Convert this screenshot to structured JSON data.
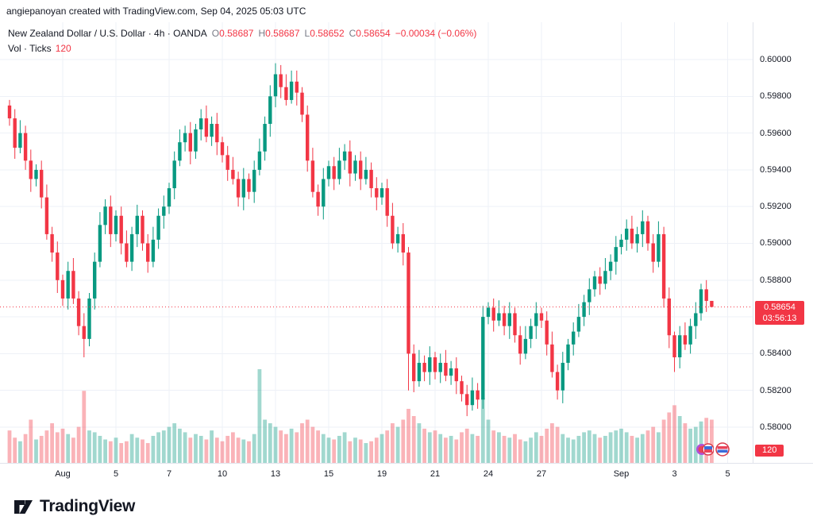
{
  "topbar": {
    "attribution": "angiepanoyan created with TradingView.com, Sep 04, 2025 05:03 UTC"
  },
  "legend": {
    "symbol_line": "New Zealand Dollar / U.S. Dollar · 4h · OANDA",
    "ohlc": [
      {
        "label": "O",
        "value": "0.58687"
      },
      {
        "label": "H",
        "value": "0.58687"
      },
      {
        "label": "L",
        "value": "0.58652"
      },
      {
        "label": "C",
        "value": "0.58654"
      }
    ],
    "change": "−0.00034 (−0.06%)",
    "vol_label": "Vol · Ticks",
    "vol_value": "120"
  },
  "price_axis": {
    "current_price": "0.58654",
    "countdown": "03:56:13",
    "volume_badge": "120"
  },
  "footer": {
    "brand": "TradingView"
  },
  "chart_data": {
    "type": "candlestick",
    "title": "New Zealand Dollar / U.S. Dollar",
    "interval": "4h",
    "exchange": "OANDA",
    "current_price": 0.58654,
    "current_volume": 120,
    "ohlc_current": {
      "o": 0.58687,
      "h": 0.58687,
      "l": 0.58652,
      "c": 0.58654
    },
    "change": -0.00034,
    "change_pct": -0.06,
    "ylim": [
      0.578,
      0.602
    ],
    "open_first": 0.5975,
    "closes": [
      0.5968,
      0.5952,
      0.596,
      0.5945,
      0.5935,
      0.594,
      0.5925,
      0.5905,
      0.5895,
      0.588,
      0.587,
      0.5885,
      0.587,
      0.5855,
      0.5848,
      0.587,
      0.589,
      0.591,
      0.592,
      0.5905,
      0.5915,
      0.59,
      0.589,
      0.5905,
      0.5915,
      0.59,
      0.589,
      0.5902,
      0.5915,
      0.592,
      0.593,
      0.5945,
      0.5955,
      0.596,
      0.595,
      0.5962,
      0.5968,
      0.5958,
      0.5965,
      0.5955,
      0.5948,
      0.594,
      0.5935,
      0.5925,
      0.5935,
      0.5928,
      0.594,
      0.595,
      0.5965,
      0.598,
      0.5992,
      0.5985,
      0.5978,
      0.5988,
      0.5982,
      0.597,
      0.5945,
      0.5928,
      0.592,
      0.5935,
      0.5942,
      0.5935,
      0.5945,
      0.595,
      0.5938,
      0.5945,
      0.5935,
      0.594,
      0.593,
      0.5925,
      0.593,
      0.5915,
      0.59,
      0.5905,
      0.5895,
      0.584,
      0.5825,
      0.5835,
      0.583,
      0.5838,
      0.583,
      0.5835,
      0.5828,
      0.5832,
      0.5825,
      0.5818,
      0.5812,
      0.582,
      0.5815,
      0.586,
      0.5865,
      0.5858,
      0.5862,
      0.5855,
      0.5862,
      0.585,
      0.584,
      0.5848,
      0.5855,
      0.5862,
      0.5858,
      0.5845,
      0.583,
      0.582,
      0.5835,
      0.5845,
      0.5852,
      0.586,
      0.5868,
      0.5875,
      0.5882,
      0.5878,
      0.5885,
      0.589,
      0.5898,
      0.5902,
      0.5908,
      0.59,
      0.5905,
      0.5912,
      0.59,
      0.589,
      0.5905,
      0.587,
      0.585,
      0.5838,
      0.585,
      0.5845,
      0.5855,
      0.5862,
      0.5875,
      0.58687,
      0.58654
    ],
    "volumes": [
      90,
      70,
      60,
      80,
      120,
      65,
      75,
      90,
      110,
      85,
      95,
      80,
      70,
      100,
      200,
      90,
      85,
      75,
      65,
      60,
      70,
      55,
      60,
      80,
      70,
      65,
      55,
      75,
      85,
      90,
      100,
      110,
      95,
      85,
      70,
      80,
      75,
      65,
      90,
      70,
      60,
      75,
      85,
      70,
      65,
      60,
      80,
      260,
      120,
      110,
      100,
      90,
      80,
      95,
      85,
      110,
      120,
      100,
      90,
      80,
      70,
      65,
      75,
      85,
      60,
      70,
      65,
      55,
      60,
      70,
      80,
      90,
      110,
      100,
      120,
      150,
      130,
      110,
      95,
      85,
      90,
      80,
      70,
      75,
      65,
      85,
      95,
      80,
      75,
      180,
      120,
      90,
      85,
      75,
      70,
      80,
      65,
      60,
      70,
      85,
      75,
      95,
      110,
      100,
      80,
      70,
      65,
      75,
      85,
      90,
      80,
      70,
      75,
      85,
      90,
      95,
      85,
      75,
      70,
      80,
      90,
      100,
      85,
      120,
      140,
      160,
      130,
      110,
      95,
      100,
      115,
      125,
      120
    ],
    "wick_overrides": {
      "14": [
        0.5862,
        0.5838
      ],
      "50": [
        0.5998,
        0.5974
      ],
      "53": [
        0.5994,
        0.5976
      ],
      "75": [
        0.5898,
        0.582
      ],
      "89": [
        0.5866,
        0.581
      ],
      "125": [
        0.5852,
        0.583
      ],
      "132": [
        0.58687,
        0.58652
      ]
    },
    "x_ticks": [
      {
        "label": "Aug",
        "index": 10
      },
      {
        "label": "5",
        "index": 20
      },
      {
        "label": "7",
        "index": 30
      },
      {
        "label": "10",
        "index": 40
      },
      {
        "label": "13",
        "index": 50
      },
      {
        "label": "15",
        "index": 60
      },
      {
        "label": "19",
        "index": 70
      },
      {
        "label": "21",
        "index": 80
      },
      {
        "label": "24",
        "index": 90
      },
      {
        "label": "27",
        "index": 100
      },
      {
        "label": "Sep",
        "index": 115
      },
      {
        "label": "3",
        "index": 125
      },
      {
        "label": "5",
        "index": 135
      }
    ],
    "y_ticks": [
      "0.60000",
      "0.59800",
      "0.59600",
      "0.59400",
      "0.59200",
      "0.59000",
      "0.58800",
      "0.58600",
      "0.58400",
      "0.58200",
      "0.58000"
    ],
    "colors": {
      "up": "#089981",
      "down": "#f23645",
      "vol_up": "rgba(8,153,129,0.38)",
      "vol_down": "rgba(242,54,69,0.38)",
      "grid": "#eef1f7",
      "axis_text": "#131722",
      "price_line": "#f23645",
      "badge": "#f23645"
    }
  }
}
